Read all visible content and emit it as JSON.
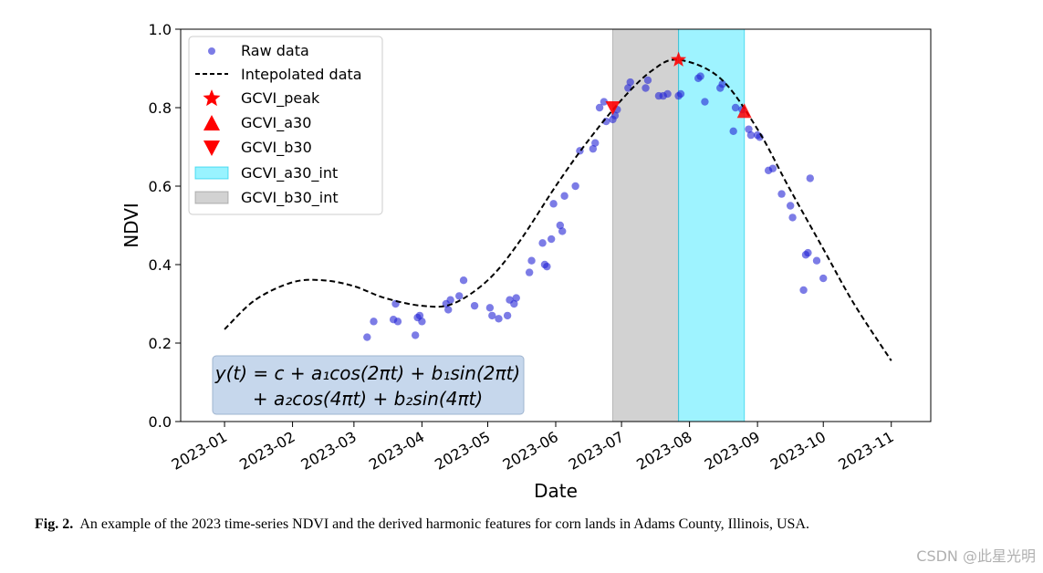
{
  "chart_data": {
    "type": "scatter",
    "title": "",
    "xlabel": "Date",
    "ylabel": "NDVI",
    "ylim": [
      0.0,
      1.0
    ],
    "xlim": [
      "2022-12-12",
      "2023-11-19"
    ],
    "x_ticks": [
      "2023-01",
      "2023-02",
      "2023-03",
      "2023-04",
      "2023-05",
      "2023-06",
      "2023-07",
      "2023-08",
      "2023-09",
      "2023-10",
      "2023-11"
    ],
    "y_ticks": [
      "0.0",
      "0.2",
      "0.4",
      "0.6",
      "0.8",
      "1.0"
    ],
    "grid": false,
    "legend_placement": "upper-left",
    "legend": {
      "raw": "Raw data",
      "interp": "Intepolated data",
      "peak": "GCVI_peak",
      "a30": "GCVI_a30",
      "b30": "GCVI_b30",
      "a30_int": "GCVI_a30_int",
      "b30_int": "GCVI_b30_int"
    },
    "equation": {
      "line1": "y(t) = c + a₁cos(2πt) + b₁sin(2πt)",
      "line2": "+ a₂cos(4πt) + b₂sin(4πt)"
    },
    "colors": {
      "raw": "#2424d6",
      "interp": "#000000",
      "peak": "#ff0000",
      "a30_fill": "#00e0ff",
      "b30_fill": "#a6a6a6",
      "eq_box": "#c6d7ec"
    },
    "interpolated": {
      "dates": [
        "2023-01-01",
        "2023-01-15",
        "2023-02-01",
        "2023-02-15",
        "2023-03-01",
        "2023-03-15",
        "2023-04-01",
        "2023-04-15",
        "2023-05-01",
        "2023-05-15",
        "2023-06-01",
        "2023-06-15",
        "2023-07-01",
        "2023-07-15",
        "2023-07-27",
        "2023-08-15",
        "2023-09-01",
        "2023-09-15",
        "2023-10-01",
        "2023-10-15",
        "2023-11-01"
      ],
      "values": [
        0.235,
        0.31,
        0.355,
        0.36,
        0.345,
        0.315,
        0.295,
        0.3,
        0.36,
        0.455,
        0.6,
        0.71,
        0.82,
        0.895,
        0.922,
        0.875,
        0.745,
        0.6,
        0.44,
        0.3,
        0.155
      ]
    },
    "raw_data": {
      "dates": [
        "2023-03-07",
        "2023-03-10",
        "2023-03-19",
        "2023-03-20",
        "2023-03-21",
        "2023-03-29",
        "2023-03-30",
        "2023-03-31",
        "2023-04-01",
        "2023-04-12",
        "2023-04-13",
        "2023-04-14",
        "2023-04-18",
        "2023-04-20",
        "2023-04-25",
        "2023-05-02",
        "2023-05-03",
        "2023-05-06",
        "2023-05-10",
        "2023-05-11",
        "2023-05-13",
        "2023-05-14",
        "2023-05-20",
        "2023-05-21",
        "2023-05-26",
        "2023-05-27",
        "2023-05-28",
        "2023-05-30",
        "2023-05-31",
        "2023-06-03",
        "2023-06-04",
        "2023-06-05",
        "2023-06-10",
        "2023-06-12",
        "2023-06-18",
        "2023-06-19",
        "2023-06-21",
        "2023-06-23",
        "2023-06-24",
        "2023-06-27",
        "2023-06-28",
        "2023-06-29",
        "2023-07-04",
        "2023-07-05",
        "2023-07-12",
        "2023-07-13",
        "2023-07-18",
        "2023-07-20",
        "2023-07-22",
        "2023-07-27",
        "2023-07-28",
        "2023-08-05",
        "2023-08-06",
        "2023-08-08",
        "2023-08-15",
        "2023-08-16",
        "2023-08-21",
        "2023-08-22",
        "2023-08-25",
        "2023-08-28",
        "2023-08-29",
        "2023-09-01",
        "2023-09-02",
        "2023-09-06",
        "2023-09-08",
        "2023-09-12",
        "2023-09-16",
        "2023-09-17",
        "2023-09-22",
        "2023-09-23",
        "2023-09-24",
        "2023-09-25",
        "2023-09-28",
        "2023-10-01"
      ],
      "values": [
        0.215,
        0.255,
        0.26,
        0.3,
        0.255,
        0.22,
        0.265,
        0.27,
        0.255,
        0.3,
        0.285,
        0.31,
        0.32,
        0.36,
        0.295,
        0.29,
        0.27,
        0.262,
        0.27,
        0.31,
        0.3,
        0.315,
        0.38,
        0.41,
        0.455,
        0.4,
        0.395,
        0.465,
        0.555,
        0.5,
        0.485,
        0.575,
        0.6,
        0.69,
        0.695,
        0.71,
        0.8,
        0.815,
        0.765,
        0.77,
        0.78,
        0.795,
        0.85,
        0.865,
        0.85,
        0.87,
        0.83,
        0.83,
        0.835,
        0.83,
        0.835,
        0.875,
        0.88,
        0.815,
        0.85,
        0.86,
        0.74,
        0.8,
        0.795,
        0.745,
        0.73,
        0.73,
        0.725,
        0.64,
        0.645,
        0.58,
        0.55,
        0.52,
        0.335,
        0.425,
        0.43,
        0.62,
        0.41,
        0.365
      ]
    },
    "peak": {
      "date": "2023-07-27",
      "value": 0.922
    },
    "b30": {
      "date": "2023-06-27",
      "value": 0.8
    },
    "a30": {
      "date": "2023-08-26",
      "value": 0.79
    },
    "b30_int": {
      "start": "2023-06-27",
      "end": "2023-07-27"
    },
    "a30_int": {
      "start": "2023-07-27",
      "end": "2023-08-26"
    }
  },
  "caption": {
    "label": "Fig. 2.",
    "text": "An example of the 2023 time-series NDVI and the derived harmonic features for corn lands in Adams County, Illinois, USA."
  },
  "watermark": "CSDN @此星光明"
}
